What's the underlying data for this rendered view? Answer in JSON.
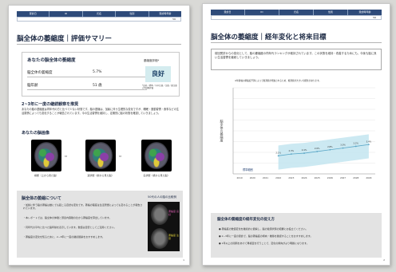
{
  "left": {
    "header_cells": [
      "受診日",
      "ID",
      "氏名",
      "性別",
      "受診時年齢"
    ],
    "header_value": "56",
    "title": "脳全体の萎縮度｜評価サマリー",
    "score_box": {
      "heading": "あなたの脳全体の萎縮度",
      "rows": [
        {
          "label": "脳全体の萎縮度",
          "value": "5.7%"
        },
        {
          "label": "脳年齢",
          "value": "51 歳"
        }
      ],
      "eval_label": "萎縮度評価*",
      "eval_value": "良好",
      "eval_note": "*良好／標準／やや注意／注意／要注意の5段階評価"
    },
    "trend_heading": "2~3年に一度の継続観察を推奨",
    "trend_text": "あなたの脳の萎縮度は同年代の方と比べて少ない状態です。脳の萎縮は、加齢に伴う生理的な変化ですが、睡眠・運動習慣・食事などの生活習慣によっても変化することが報告されています。今の生活習慣を維持し、定期的に脳の状態を確認していきましょう。",
    "images_heading": "あなたの脳画像",
    "scan_labels": [
      "横断（上から見た脳）",
      "冠状断（前から見た脳）",
      "矢状断（横から見た脳）"
    ],
    "about": {
      "heading": "脳全体の萎縮について",
      "bullets": [
        "・加齢に伴う脳の萎縮は誰にでも起こる自然な変化です。萎縮の程度は生活習慣によっても変わることが報告されています。",
        "・本レポートでは、脳全体の体積と頭蓋内容積の比から萎縮度を算出しています。",
        "・同年代の平均と比べた脳年齢を表示しています。数値は目安としてご活用ください。",
        "・萎縮度の変化を知るために、2~3年に一度の継続観察をおすすめします。"
      ],
      "figure_title": "50代の人の脳の比較例",
      "figure_labels": [
        "萎縮度 良好",
        "萎縮度 注意"
      ]
    },
    "page_number": "1"
  },
  "right": {
    "header_cells": [
      "受診日",
      "ID",
      "氏名",
      "性別",
      "受診時年齢"
    ],
    "header_value": "56",
    "title": "脳全体の萎縮度｜経年変化と将来目標",
    "intro": "前回受診からの変化として、脳の萎縮度の同年代ランキングが維持されています。この状態を維持・改善するためにも、今後も脳に良い生活習慣を継続していきましょう。",
    "chart_caption": "※年齢軸の萎縮度予測によって推測値が増加されるため、推測値が大きい可能性があります。",
    "ylabel": "脳全体の萎縮度",
    "series_label": "標準範囲",
    "future": {
      "heading": "脳全体の萎縮度の経年変化の捉え方",
      "bullets": [
        "● 萎縮度の数値変化を継続的に観察し、脳の健康状態の把握にお役立てください。",
        "● 2~3年に一度の受診で、脳の萎縮度の傾向・推移を確認することをおすすめします。",
        "● 1年以上の間隔をあけて再検査を行うことで、変化の傾向がより明確になります。"
      ]
    },
    "page_number": "2"
  },
  "colors": {
    "header": "#2e4b7a",
    "eval_box": "#d4ecef",
    "band": "#bfe3ef",
    "line": "#5aa7c7"
  },
  "chart_data": {
    "type": "line",
    "x": [
      "2019",
      "2020",
      "2021",
      "2022",
      "2023",
      "2024",
      "2025",
      "2026",
      "2027",
      "2028",
      "2029"
    ],
    "series": [
      {
        "values": [
          null,
          null,
          null,
          2.1,
          2.3,
          2.4,
          2.6,
          2.8,
          3.0,
          3.2,
          3.4
        ]
      }
    ],
    "ylabel": "脳全体の萎縮度",
    "ylim": [
      0,
      10
    ]
  }
}
